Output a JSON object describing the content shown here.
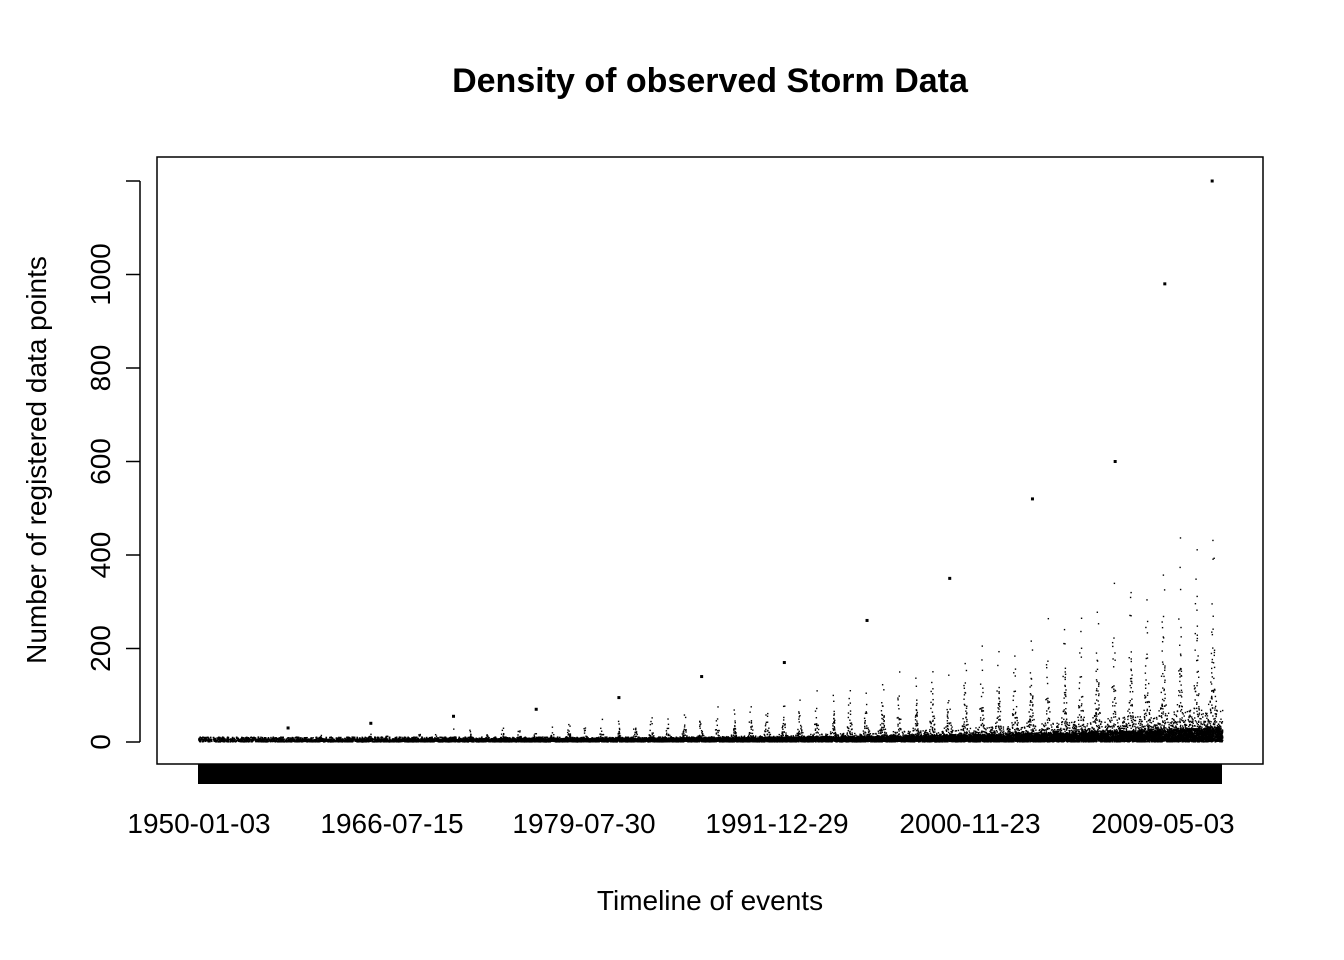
{
  "chart_data": {
    "type": "scatter",
    "title": "Density of observed Storm Data",
    "xlabel": "Timeline of events",
    "ylabel": "Number of registered data points",
    "x_tick_labels": [
      "1950-01-03",
      "1966-07-15",
      "1979-07-30",
      "1991-12-29",
      "2000-11-23",
      "2009-05-03"
    ],
    "x_range": [
      "1950-01-03",
      "2011-11-30"
    ],
    "y_ticks": [
      0,
      200,
      400,
      600,
      800,
      1000
    ],
    "ylim": [
      -45,
      1245
    ],
    "y_range_data": [
      0,
      1200
    ],
    "grid": false,
    "legend": "none",
    "point_color": "#000000",
    "notes_points": "One point per day: number of events recorded that day; dense low baseline with seasonal spikes growing over time, max about 1200 near 2011",
    "series": [
      {
        "x": [
          "1950-06-15",
          "1955-06-15",
          "1960-06-15",
          "1965-06-15",
          "1970-06-15",
          "1975-06-15",
          "1980-06-15",
          "1985-06-15",
          "1990-06-15",
          "1995-06-15",
          "2000-06-15",
          "2005-06-15",
          "2008-06-15",
          "2011-04-27"
        ],
        "values": [
          8,
          30,
          40,
          55,
          70,
          95,
          140,
          170,
          260,
          350,
          520,
          600,
          980,
          1200
        ]
      }
    ]
  }
}
